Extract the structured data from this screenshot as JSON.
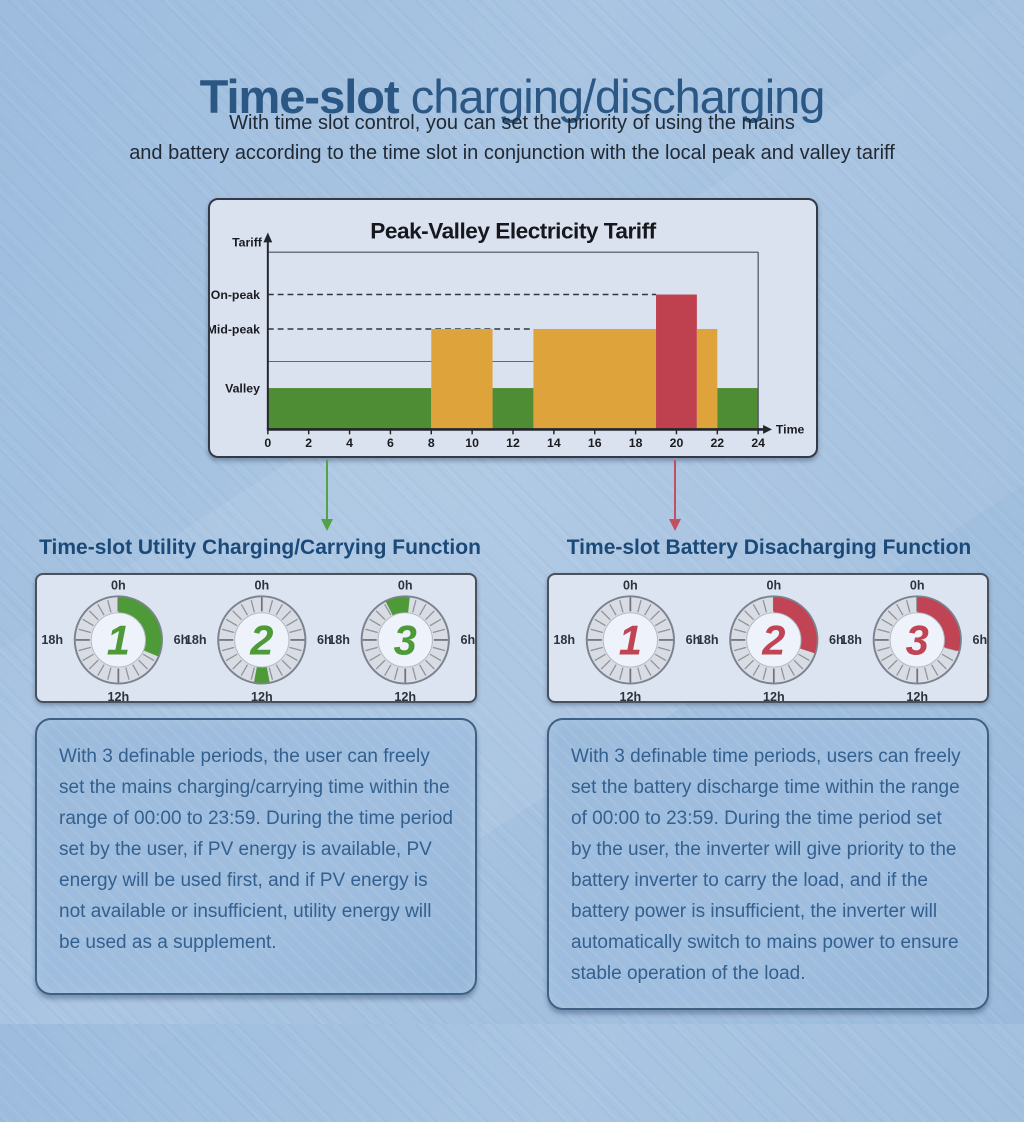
{
  "page": {
    "title_bold": "Time-slot",
    "title_rest": " charging/discharging",
    "subtitle_line1": "With time slot control, you can set the priority of using the mains",
    "subtitle_line2": "and battery according to the time slot in conjunction with the local peak and valley tariff"
  },
  "chart_data": {
    "type": "bar",
    "title": "Peak-Valley Electricity Tariff",
    "ylabel": "Tariff",
    "xlabel": "Time",
    "x_range": [
      0,
      24
    ],
    "xticks": [
      0,
      2,
      4,
      6,
      8,
      10,
      12,
      14,
      16,
      18,
      20,
      22,
      24
    ],
    "levels": [
      "Valley",
      "Mid-peak",
      "On-peak"
    ],
    "level_values": {
      "Valley": 1,
      "Mid-peak": 2,
      "On-peak": 3
    },
    "segments": [
      {
        "start": 0,
        "end": 8,
        "level": "Valley"
      },
      {
        "start": 8,
        "end": 11,
        "level": "Mid-peak"
      },
      {
        "start": 11,
        "end": 13,
        "level": "Valley"
      },
      {
        "start": 13,
        "end": 19,
        "level": "Mid-peak"
      },
      {
        "start": 19,
        "end": 21,
        "level": "On-peak"
      },
      {
        "start": 21,
        "end": 22,
        "level": "Mid-peak"
      },
      {
        "start": 22,
        "end": 24,
        "level": "Valley"
      }
    ],
    "colors": {
      "Valley": "#4e8d33",
      "Mid-peak": "#dfa33c",
      "On-peak": "#bf4150"
    },
    "gridlines": [
      {
        "level": "On-peak",
        "style": "dashed",
        "from": 0,
        "to": 19
      },
      {
        "level": "Mid-peak",
        "style": "dashed",
        "from": 0,
        "to": 13
      }
    ],
    "aux_line": {
      "from": 0,
      "to": 13
    },
    "legend": "none",
    "grid": "partial (dashed level guides)"
  },
  "dial_labels": {
    "top": "0h",
    "right": "6h",
    "bottom": "12h",
    "left": "18h"
  },
  "sections": {
    "left": {
      "heading": "Time-slot Utility Charging/Carrying Function",
      "accent": "#4e9a38",
      "arrow_color": "#56a046",
      "dials": [
        {
          "number": "1",
          "arc_start_h": 0,
          "arc_end_h": 7.5
        },
        {
          "number": "2",
          "arc_start_h": 11.3,
          "arc_end_h": 12.7
        },
        {
          "number": "3",
          "arc_start_h": 22.2,
          "arc_end_h": 0.4
        }
      ],
      "body_text": "With 3 definable periods, the user can freely set the mains charging/carrying time within the range of 00:00 to 23:59. During the time period set by the user, if PV energy is available, PV energy will be used first, and if PV energy is not available or insufficient, utility energy will be used as a supplement."
    },
    "right": {
      "heading": "Time-slot Battery Disacharging Function",
      "accent": "#c04453",
      "arrow_color": "#c44f5e",
      "dials": [
        {
          "number": "1",
          "arc_start_h": null,
          "arc_end_h": null
        },
        {
          "number": "2",
          "arc_start_h": 0,
          "arc_end_h": 7.2
        },
        {
          "number": "3",
          "arc_start_h": 0,
          "arc_end_h": 7.0
        }
      ],
      "body_text": "With 3 definable time periods, users can freely set the battery discharge time within the range of 00:00 to 23:59. During the time period set by the user, the inverter will give priority to the battery inverter to carry the load, and if the battery power is insufficient, the inverter will automatically switch to mains power to ensure stable operation of the load."
    }
  }
}
